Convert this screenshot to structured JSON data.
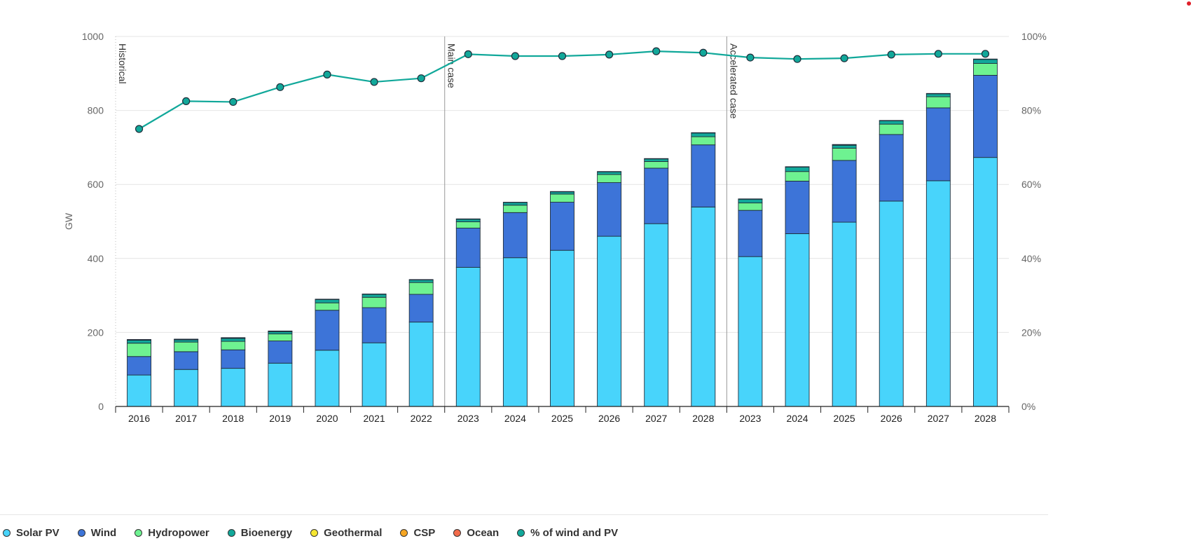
{
  "colors": {
    "solar": "#48d4fb",
    "wind": "#3d74d8",
    "hydro": "#6ef291",
    "bio": "#11a89a",
    "geo": "#f5e632",
    "csp": "#f5a623",
    "ocean": "#f26b4b",
    "share": "#11a89a",
    "corner_marker": "#e0202a"
  },
  "chart_data": {
    "type": "bar",
    "stacked": true,
    "grid": true,
    "ylabel": "GW",
    "ylim": [
      0,
      1000
    ],
    "y2lim": [
      0,
      100
    ],
    "yticks": [
      "0",
      "200",
      "400",
      "600",
      "800",
      "1000"
    ],
    "y2ticks": [
      "0%",
      "20%",
      "40%",
      "60%",
      "80%",
      "100%"
    ],
    "legend_position": "bottom-left",
    "categories": [
      "2016",
      "2017",
      "2018",
      "2019",
      "2020",
      "2021",
      "2022",
      "2023",
      "2024",
      "2025",
      "2026",
      "2027",
      "2028",
      "2023",
      "2024",
      "2025",
      "2026",
      "2027",
      "2028"
    ],
    "sections": [
      {
        "label": "Historical",
        "start": 0,
        "end": 6
      },
      {
        "label": "Main case",
        "start": 7,
        "end": 12
      },
      {
        "label": "Accelerated case",
        "start": 13,
        "end": 18
      }
    ],
    "series": [
      {
        "name": "Solar PV",
        "key": "solar",
        "values": [
          85,
          100,
          103,
          117,
          152,
          172,
          228,
          376,
          402,
          422,
          460,
          494,
          539,
          405,
          467,
          498,
          555,
          610,
          673
        ]
      },
      {
        "name": "Wind",
        "key": "wind",
        "values": [
          50,
          48,
          50,
          60,
          108,
          95,
          75,
          106,
          122,
          130,
          145,
          150,
          168,
          125,
          142,
          167,
          180,
          197,
          222
        ]
      },
      {
        "name": "Hydropower",
        "key": "hydro",
        "values": [
          36,
          26,
          23,
          19,
          20,
          28,
          32,
          17,
          20,
          22,
          22,
          18,
          22,
          20,
          26,
          33,
          28,
          30,
          32
        ]
      },
      {
        "name": "Bioenergy",
        "key": "bio",
        "values": [
          8,
          6,
          8,
          6,
          9,
          8,
          7,
          7,
          7,
          6,
          7,
          7,
          10,
          10,
          12,
          8,
          9,
          8,
          11
        ]
      },
      {
        "name": "Geothermal",
        "key": "geo",
        "values": [
          1,
          1,
          1,
          1,
          1,
          1,
          1,
          1,
          1,
          1,
          1,
          1,
          1,
          1,
          1,
          1,
          1,
          1,
          1
        ]
      },
      {
        "name": "CSP",
        "key": "csp",
        "values": [
          1,
          1,
          1,
          1,
          0,
          0,
          0,
          0,
          0,
          0,
          0,
          0,
          0,
          0,
          0,
          1,
          0,
          0,
          0
        ]
      },
      {
        "name": "Ocean",
        "key": "ocean",
        "values": [
          0,
          0,
          0,
          0,
          0,
          0,
          0,
          0,
          0,
          0,
          0,
          0,
          0,
          0,
          0,
          0,
          0,
          0,
          0
        ]
      }
    ],
    "line_series": {
      "name": "% of wind and PV",
      "key": "share",
      "axis": "right",
      "values": [
        75,
        82.5,
        82.3,
        86.3,
        89.7,
        87.7,
        88.7,
        95.2,
        94.7,
        94.7,
        95.1,
        96.0,
        95.6,
        94.3,
        93.9,
        94.1,
        95.1,
        95.3,
        95.3
      ]
    }
  },
  "legend": [
    {
      "label": "Solar PV",
      "key": "solar"
    },
    {
      "label": "Wind",
      "key": "wind"
    },
    {
      "label": "Hydropower",
      "key": "hydro"
    },
    {
      "label": "Bioenergy",
      "key": "bio"
    },
    {
      "label": "Geothermal",
      "key": "geo"
    },
    {
      "label": "CSP",
      "key": "csp"
    },
    {
      "label": "Ocean",
      "key": "ocean"
    },
    {
      "label": "% of wind and PV",
      "key": "share"
    }
  ]
}
